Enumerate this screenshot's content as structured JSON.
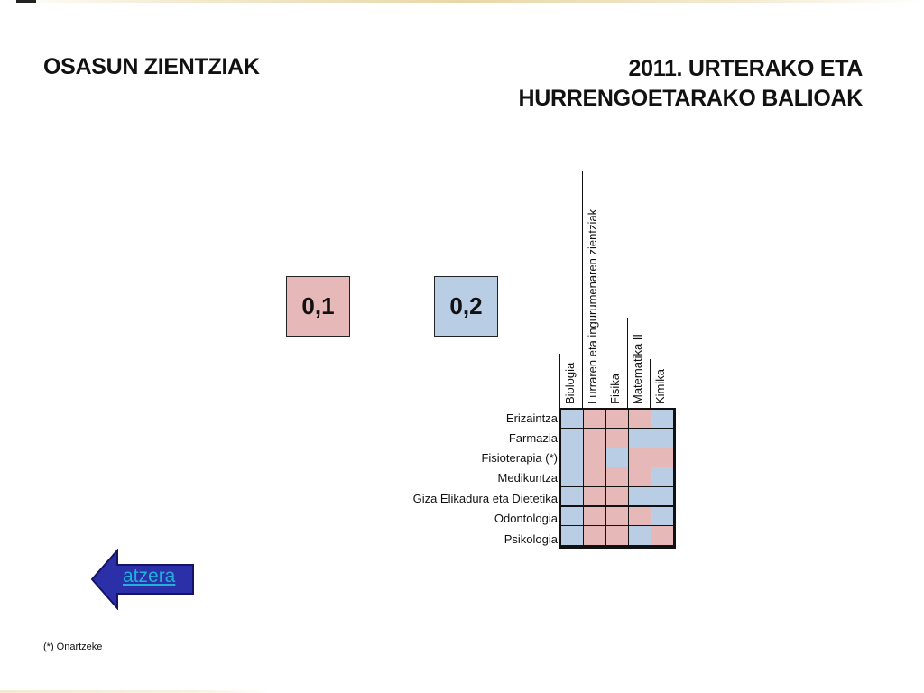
{
  "header": {
    "title_left": "OSASUN ZIENTZIAK",
    "title_right_line1": "2011. URTERAKO ETA",
    "title_right_line2": "HURRENGOETARAKO BALIOAK"
  },
  "legend": {
    "pink_value": "0,1",
    "blue_value": "0,2",
    "pink_color": "#e6b9b8",
    "blue_color": "#b9cde5"
  },
  "columns": [
    "Biologia",
    "Lurraren eta ingurumenaren zientziak",
    "Fisika",
    "Matematika II",
    "Kimika"
  ],
  "rows": [
    {
      "label": "Erizaintza",
      "values": [
        "blue",
        "pink",
        "pink",
        "pink",
        "blue"
      ]
    },
    {
      "label": "Farmazia",
      "values": [
        "blue",
        "pink",
        "pink",
        "blue",
        "blue"
      ]
    },
    {
      "label": "Fisioterapia (*)",
      "values": [
        "blue",
        "pink",
        "blue",
        "pink",
        "pink"
      ]
    },
    {
      "label": "Medikuntza",
      "values": [
        "blue",
        "pink",
        "pink",
        "pink",
        "blue"
      ]
    },
    {
      "label": "Giza Elikadura eta Dietetika",
      "values": [
        "blue",
        "pink",
        "pink",
        "blue",
        "blue"
      ]
    },
    {
      "label": "Odontologia",
      "values": [
        "blue",
        "pink",
        "pink",
        "pink",
        "blue"
      ]
    },
    {
      "label": "Psikologia",
      "values": [
        "blue",
        "pink",
        "pink",
        "blue",
        "pink"
      ]
    }
  ],
  "nav": {
    "back_label": "atzera",
    "back_icon": "left-arrow-icon"
  },
  "footnote": "(*) Onartzeke"
}
